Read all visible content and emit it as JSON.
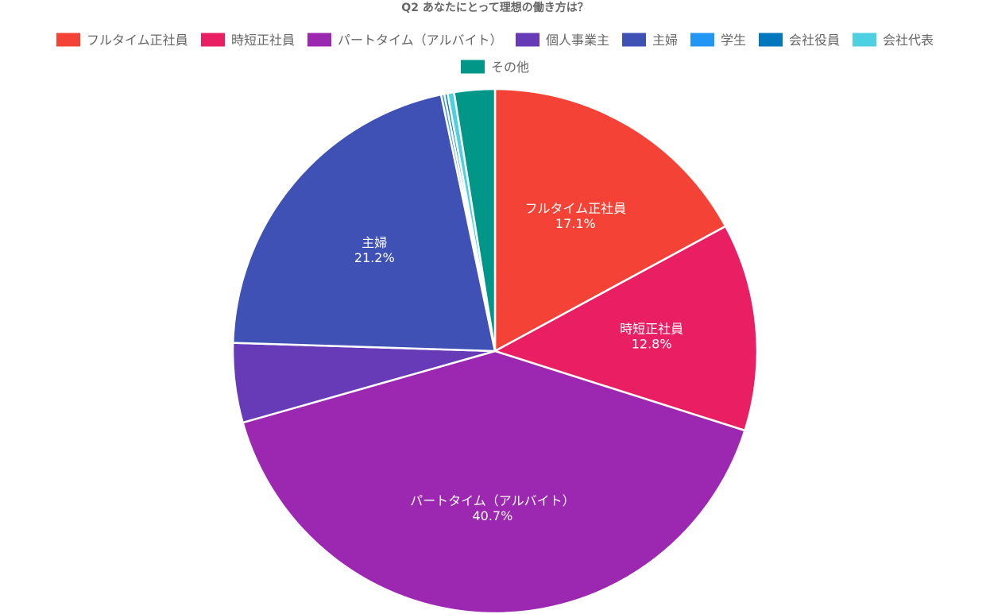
{
  "chart_data": {
    "type": "pie",
    "title": "Q2 あなたにとって理想の働き方は？",
    "legend_position": "top",
    "start_angle_deg": 0,
    "direction": "clockwise",
    "slices": [
      {
        "name": "フルタイム正社員",
        "value": 17.1,
        "label": "17.1%",
        "color": "#F44336"
      },
      {
        "name": "時短正社員",
        "value": 12.8,
        "label": "12.8%",
        "color": "#E91E63"
      },
      {
        "name": "パートタイム（アルバイト）",
        "value": 40.7,
        "label": "40.7%",
        "color": "#9C27B0"
      },
      {
        "name": "個人事業主",
        "value": 4.9,
        "label": "",
        "color": "#673AB7"
      },
      {
        "name": "主婦",
        "value": 21.2,
        "label": "21.2%",
        "color": "#3F51B5"
      },
      {
        "name": "学生",
        "value": 0.2,
        "label": "",
        "color": "#2196F3"
      },
      {
        "name": "会社役員",
        "value": 0.2,
        "label": "",
        "color": "#0277BD"
      },
      {
        "name": "会社代表",
        "value": 0.4,
        "label": "",
        "color": "#4DD0E1"
      },
      {
        "name": "その他",
        "value": 2.5,
        "label": "",
        "color": "#009688"
      }
    ]
  }
}
